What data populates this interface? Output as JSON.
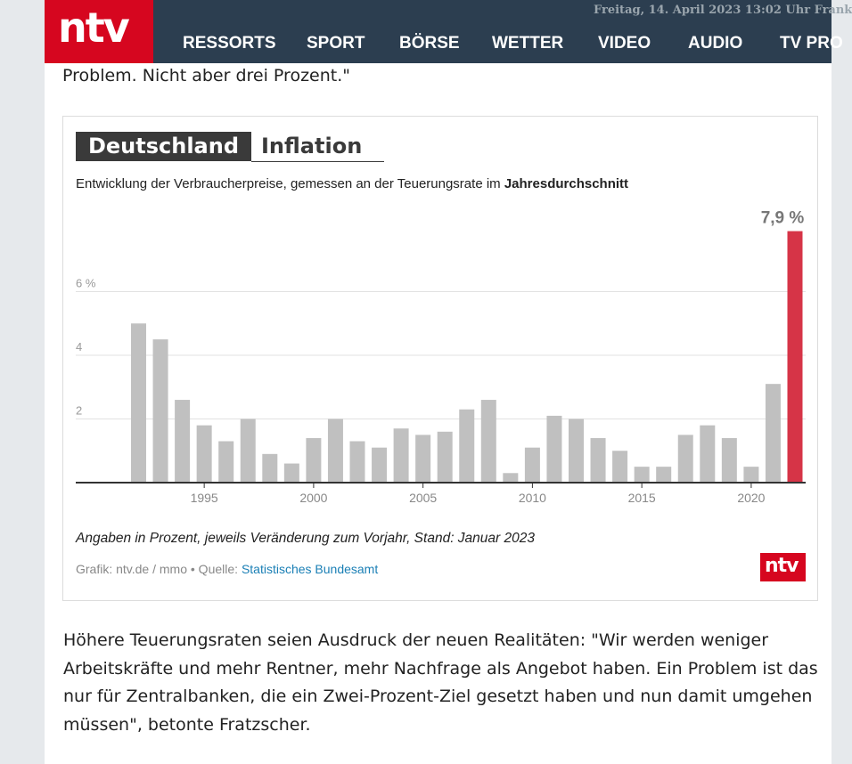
{
  "header": {
    "logo": "ntv",
    "date": "Freitag, 14. April 2023 13:02 Uhr Frank",
    "nav": [
      "RESSORTS",
      "SPORT",
      "BÖRSE",
      "WETTER",
      "VIDEO",
      "AUDIO",
      "TV PRO"
    ]
  },
  "article": {
    "prev_text": "Problem. Nicht aber drei Prozent.\"",
    "paragraph": "Höhere Teuerungsraten seien Ausdruck der neuen Realitäten: \"Wir werden weniger Arbeitskräfte und mehr Rentner, mehr Nachfrage als Angebot haben. Ein Problem ist das nur für Zentralbanken, die ein Zwei-Prozent-Ziel gesetzt haben und nun damit umgehen müssen\", betonte Fratzscher."
  },
  "figure": {
    "title_dark": "Deutschland",
    "title_light": "Inflation",
    "subtitle_pre": "Entwicklung der Verbraucherpreise, gemessen an der Teuerungsrate im ",
    "subtitle_bold": "Jahresdurchschnitt",
    "note": "Angaben in Prozent, jeweils Veränderung zum Vorjahr, Stand: Januar 2023",
    "source_prefix": "Grafik: ntv.de / mmo • Quelle: ",
    "source_link": "Statistisches Bundesamt",
    "logo": "ntv"
  },
  "chart_data": {
    "type": "bar",
    "title": "Deutschland Inflation",
    "x": [
      1992,
      1993,
      1994,
      1995,
      1996,
      1997,
      1998,
      1999,
      2000,
      2001,
      2002,
      2003,
      2004,
      2005,
      2006,
      2007,
      2008,
      2009,
      2010,
      2011,
      2012,
      2013,
      2014,
      2015,
      2016,
      2017,
      2018,
      2019,
      2020,
      2021,
      2022
    ],
    "values": [
      5.0,
      4.5,
      2.6,
      1.8,
      1.3,
      2.0,
      0.9,
      0.6,
      1.4,
      2.0,
      1.3,
      1.1,
      1.7,
      1.5,
      1.6,
      2.3,
      2.6,
      0.3,
      1.1,
      2.1,
      2.0,
      1.4,
      1.0,
      0.5,
      0.5,
      1.5,
      1.8,
      1.4,
      0.5,
      3.1,
      7.9
    ],
    "highlight": {
      "index": 30,
      "label": "7,9 %",
      "color": "#d63447"
    },
    "bar_color": "#c0c0c0",
    "xticks": [
      1995,
      2000,
      2005,
      2010,
      2015,
      2020
    ],
    "yticks": [
      {
        "value": 2,
        "label": "2"
      },
      {
        "value": 4,
        "label": "4"
      },
      {
        "value": 6,
        "label": "6 %"
      }
    ],
    "ylim": [
      0,
      8
    ],
    "grid": true
  }
}
